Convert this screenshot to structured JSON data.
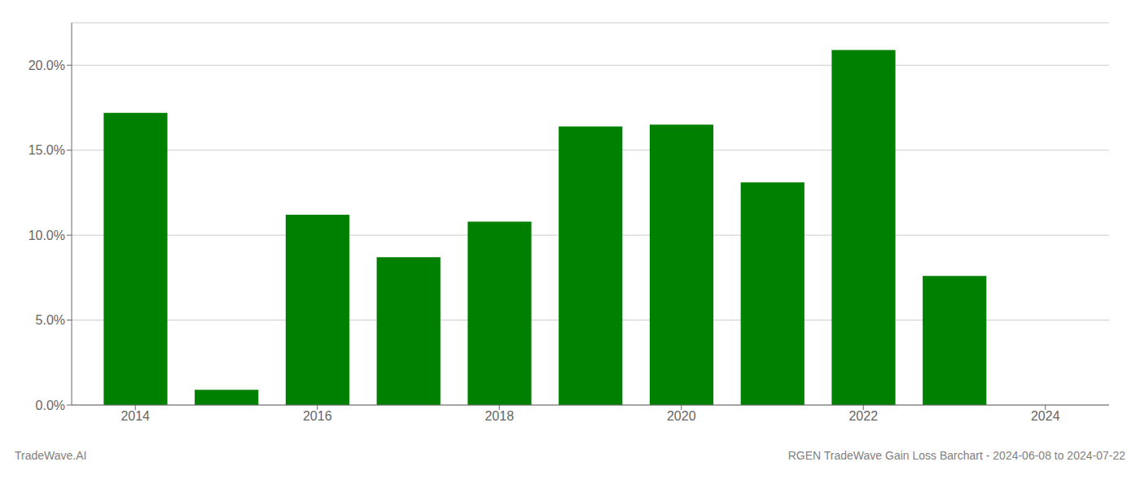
{
  "chart_data": {
    "type": "bar",
    "title": "RGEN TradeWave Gain Loss Barchart - 2024-06-08 to 2024-07-22",
    "annotations": [
      "TradeWave.AI"
    ],
    "x": [
      2014,
      2015,
      2016,
      2017,
      2018,
      2019,
      2020,
      2021,
      2022,
      2023
    ],
    "values": [
      0.172,
      0.009,
      0.112,
      0.087,
      0.108,
      0.164,
      0.165,
      0.131,
      0.209,
      0.076
    ],
    "color": "#008000",
    "xlim": [
      2013.3,
      2024.7
    ],
    "xticks": [
      2014,
      2016,
      2018,
      2020,
      2022,
      2024
    ],
    "ylim": [
      0,
      0.225
    ],
    "yticks": [
      {
        "value": 0.0,
        "label": "0.0%"
      },
      {
        "value": 0.05,
        "label": "5.0%"
      },
      {
        "value": 0.1,
        "label": "10.0%"
      },
      {
        "value": 0.15,
        "label": "15.0%"
      },
      {
        "value": 0.2,
        "label": "20.0%"
      }
    ],
    "grid": "y"
  }
}
